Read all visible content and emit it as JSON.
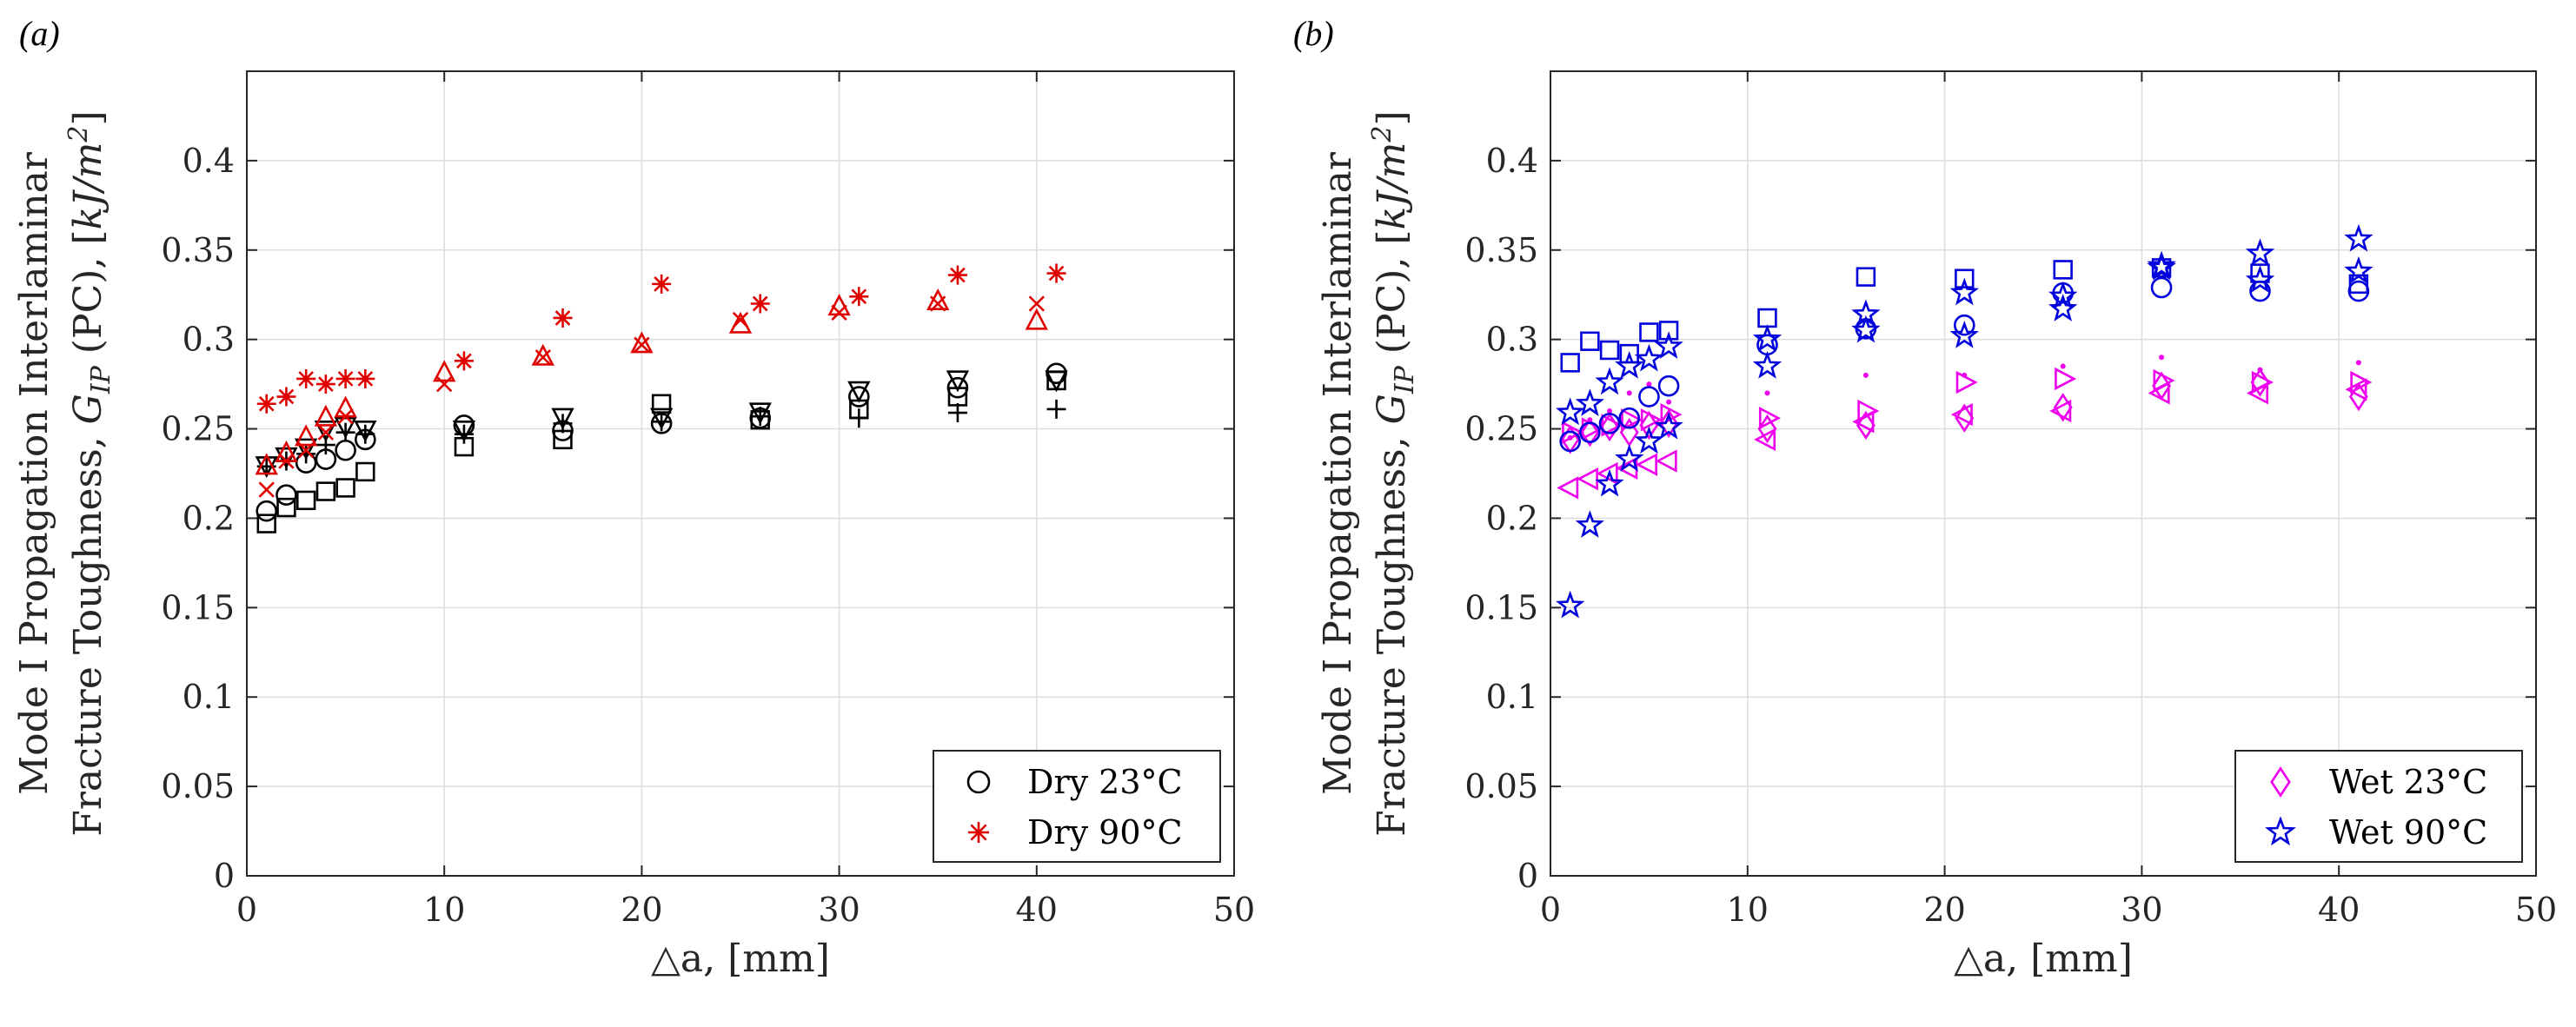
{
  "chart_data": [
    {
      "panel_label": "(a)",
      "type": "scatter",
      "xlabel": "△a, [mm]",
      "ylabel_line1": "Mode I Propagation Interlaminar",
      "ylabel_line2_prefix": "Fracture Toughness, ",
      "ylabel_line2_symbol": "G",
      "ylabel_line2_subscript": "IP",
      "ylabel_line2_suffix": " (PC), [",
      "ylabel_line2_unit": "kJ/m",
      "ylabel_line2_unit_sup": "2",
      "ylabel_line2_end": "]",
      "xlim": [
        0,
        50
      ],
      "ylim": [
        0,
        0.45
      ],
      "xticks": [
        "0",
        "10",
        "20",
        "30",
        "40",
        "50"
      ],
      "yticks": [
        "0",
        "0.05",
        "0.1",
        "0.15",
        "0.2",
        "0.25",
        "0.3",
        "0.35",
        "0.4"
      ],
      "grid": true,
      "legend_position": "bottom-right",
      "legend": [
        {
          "label": "Dry 23°C",
          "marker": "circle",
          "color": "#000000"
        },
        {
          "label": "Dry 90°C",
          "marker": "asterisk",
          "color": "#e00000"
        }
      ],
      "series": [
        {
          "group": "Dry 23°C",
          "marker": "circle",
          "color": "#000000",
          "points": [
            [
              1,
              0.204
            ],
            [
              2,
              0.213
            ],
            [
              3,
              0.231
            ],
            [
              4,
              0.233
            ],
            [
              5,
              0.238
            ],
            [
              6,
              0.244
            ],
            [
              11,
              0.252
            ],
            [
              16,
              0.249
            ],
            [
              21,
              0.253
            ],
            [
              26,
              0.256
            ],
            [
              31,
              0.268
            ],
            [
              36,
              0.273
            ],
            [
              41,
              0.281
            ]
          ]
        },
        {
          "group": "Dry 23°C",
          "marker": "square",
          "color": "#000000",
          "points": [
            [
              1,
              0.197
            ],
            [
              2,
              0.206
            ],
            [
              3,
              0.21
            ],
            [
              4,
              0.215
            ],
            [
              5,
              0.217
            ],
            [
              6,
              0.226
            ],
            [
              11,
              0.24
            ],
            [
              16,
              0.244
            ],
            [
              21,
              0.264
            ],
            [
              26,
              0.255
            ],
            [
              31,
              0.261
            ],
            [
              36,
              0.268
            ],
            [
              41,
              0.277
            ]
          ]
        },
        {
          "group": "Dry 23°C",
          "marker": "triangle-down",
          "color": "#000000",
          "points": [
            [
              1,
              0.23
            ],
            [
              2,
              0.235
            ],
            [
              3,
              0.24
            ],
            [
              4,
              0.25
            ],
            [
              5,
              0.252
            ],
            [
              6,
              0.25
            ],
            [
              11,
              0.25
            ],
            [
              16,
              0.257
            ],
            [
              21,
              0.257
            ],
            [
              26,
              0.26
            ],
            [
              31,
              0.272
            ],
            [
              36,
              0.278
            ],
            [
              41,
              0.278
            ]
          ]
        },
        {
          "group": "Dry 23°C",
          "marker": "plus",
          "color": "#000000",
          "points": [
            [
              1,
              0.229
            ],
            [
              2,
              0.232
            ],
            [
              3,
              0.236
            ],
            [
              4,
              0.241
            ],
            [
              5,
              0.248
            ],
            [
              6,
              0.247
            ],
            [
              11,
              0.247
            ],
            [
              16,
              0.253
            ],
            [
              21,
              0.254
            ],
            [
              26,
              0.257
            ],
            [
              31,
              0.256
            ],
            [
              36,
              0.259
            ],
            [
              41,
              0.261
            ]
          ]
        },
        {
          "group": "Dry 90°C",
          "marker": "asterisk",
          "color": "#e00000",
          "points": [
            [
              1,
              0.264
            ],
            [
              2,
              0.268
            ],
            [
              3,
              0.278
            ],
            [
              4,
              0.275
            ],
            [
              5,
              0.278
            ],
            [
              6,
              0.278
            ],
            [
              11,
              0.288
            ],
            [
              16,
              0.312
            ],
            [
              21,
              0.331
            ],
            [
              26,
              0.32
            ],
            [
              31,
              0.324
            ],
            [
              36,
              0.336
            ],
            [
              41,
              0.337
            ]
          ]
        },
        {
          "group": "Dry 90°C",
          "marker": "triangle-up",
          "color": "#e00000",
          "points": [
            [
              1,
              0.229
            ],
            [
              2,
              0.236
            ],
            [
              3,
              0.245
            ],
            [
              4,
              0.256
            ],
            [
              5,
              0.261
            ],
            [
              10,
              0.281
            ],
            [
              15,
              0.29
            ],
            [
              20,
              0.297
            ],
            [
              25,
              0.308
            ],
            [
              30,
              0.318
            ],
            [
              35,
              0.321
            ],
            [
              40,
              0.31
            ]
          ]
        },
        {
          "group": "Dry 90°C",
          "marker": "cross",
          "color": "#e00000",
          "points": [
            [
              1,
              0.216
            ],
            [
              2,
              0.232
            ],
            [
              3,
              0.238
            ],
            [
              4,
              0.248
            ],
            [
              5,
              0.257
            ],
            [
              10,
              0.275
            ],
            [
              15,
              0.29
            ],
            [
              20,
              0.297
            ],
            [
              25,
              0.311
            ],
            [
              30,
              0.315
            ],
            [
              35,
              0.32
            ],
            [
              40,
              0.32
            ]
          ]
        }
      ]
    },
    {
      "panel_label": "(b)",
      "type": "scatter",
      "xlabel": "△a, [mm]",
      "ylabel_line1": "Mode I Propagation Interlaminar",
      "ylabel_line2_prefix": "Fracture Toughness, ",
      "ylabel_line2_symbol": "G",
      "ylabel_line2_subscript": "IP",
      "ylabel_line2_suffix": " (PC), [",
      "ylabel_line2_unit": "kJ/m",
      "ylabel_line2_unit_sup": "2",
      "ylabel_line2_end": "]",
      "xlim": [
        0,
        50
      ],
      "ylim": [
        0,
        0.45
      ],
      "xticks": [
        "0",
        "10",
        "20",
        "30",
        "40",
        "50"
      ],
      "yticks": [
        "0",
        "0.05",
        "0.1",
        "0.15",
        "0.2",
        "0.25",
        "0.3",
        "0.35",
        "0.4"
      ],
      "grid": true,
      "legend_position": "bottom-right",
      "legend": [
        {
          "label": "Wet 23°C",
          "marker": "diamond",
          "color": "#ee00ee"
        },
        {
          "label": "Wet 90°C",
          "marker": "star",
          "color": "#0000dd"
        }
      ],
      "series": [
        {
          "group": "Wet 23°C",
          "marker": "diamond",
          "color": "#ee00ee",
          "points": [
            [
              1,
              0.244
            ],
            [
              2,
              0.248
            ],
            [
              3,
              0.251
            ],
            [
              4,
              0.248
            ],
            [
              5,
              0.252
            ],
            [
              6,
              0.253
            ],
            [
              11,
              0.25
            ],
            [
              16,
              0.252
            ],
            [
              21,
              0.256
            ],
            [
              26,
              0.262
            ],
            [
              31,
              0.274
            ],
            [
              36,
              0.276
            ],
            [
              41,
              0.268
            ]
          ]
        },
        {
          "group": "Wet 23°C",
          "marker": "triangle-left",
          "color": "#ee00ee",
          "points": [
            [
              1,
              0.217
            ],
            [
              2,
              0.222
            ],
            [
              3,
              0.225
            ],
            [
              4,
              0.228
            ],
            [
              5,
              0.23
            ],
            [
              6,
              0.232
            ],
            [
              11,
              0.244
            ],
            [
              16,
              0.254
            ],
            [
              21,
              0.258
            ],
            [
              26,
              0.26
            ],
            [
              31,
              0.27
            ],
            [
              36,
              0.27
            ],
            [
              41,
              0.272
            ]
          ]
        },
        {
          "group": "Wet 23°C",
          "marker": "triangle-right",
          "color": "#ee00ee",
          "points": [
            [
              1,
              0.248
            ],
            [
              2,
              0.25
            ],
            [
              3,
              0.252
            ],
            [
              4,
              0.255
            ],
            [
              5,
              0.255
            ],
            [
              6,
              0.258
            ],
            [
              11,
              0.256
            ],
            [
              16,
              0.26
            ],
            [
              21,
              0.276
            ],
            [
              26,
              0.278
            ],
            [
              31,
              0.277
            ],
            [
              36,
              0.276
            ],
            [
              41,
              0.276
            ]
          ]
        },
        {
          "group": "Wet 23°C",
          "marker": "point",
          "color": "#ee00ee",
          "points": [
            [
              1,
              0.245
            ],
            [
              2,
              0.255
            ],
            [
              3,
              0.26
            ],
            [
              4,
              0.27
            ],
            [
              5,
              0.275
            ],
            [
              6,
              0.265
            ],
            [
              11,
              0.27
            ],
            [
              16,
              0.28
            ],
            [
              21,
              0.28
            ],
            [
              26,
              0.285
            ],
            [
              31,
              0.29
            ],
            [
              36,
              0.283
            ],
            [
              41,
              0.287
            ]
          ]
        },
        {
          "group": "Wet 90°C",
          "marker": "star",
          "color": "#0000dd",
          "points": [
            [
              1,
              0.151
            ],
            [
              2,
              0.196
            ],
            [
              3,
              0.219
            ],
            [
              4,
              0.233
            ],
            [
              5,
              0.243
            ],
            [
              6,
              0.251
            ],
            [
              11,
              0.285
            ],
            [
              16,
              0.305
            ],
            [
              21,
              0.302
            ],
            [
              26,
              0.317
            ],
            [
              31,
              0.34
            ],
            [
              36,
              0.348
            ],
            [
              41,
              0.356
            ]
          ]
        },
        {
          "group": "Wet 90°C",
          "marker": "star",
          "color": "#0000dd",
          "points": [
            [
              1,
              0.259
            ],
            [
              2,
              0.264
            ],
            [
              3,
              0.276
            ],
            [
              4,
              0.285
            ],
            [
              5,
              0.289
            ],
            [
              6,
              0.296
            ],
            [
              11,
              0.3
            ],
            [
              16,
              0.314
            ],
            [
              21,
              0.326
            ],
            [
              26,
              0.324
            ],
            [
              31,
              0.341
            ],
            [
              36,
              0.333
            ],
            [
              41,
              0.338
            ]
          ]
        },
        {
          "group": "Wet 90°C",
          "marker": "square",
          "color": "#0000dd",
          "points": [
            [
              1,
              0.287
            ],
            [
              2,
              0.299
            ],
            [
              3,
              0.294
            ],
            [
              4,
              0.292
            ],
            [
              5,
              0.304
            ],
            [
              6,
              0.305
            ],
            [
              11,
              0.312
            ],
            [
              16,
              0.335
            ],
            [
              21,
              0.334
            ],
            [
              26,
              0.339
            ],
            [
              31,
              0.34
            ],
            [
              36,
              0.337
            ],
            [
              41,
              0.331
            ]
          ]
        },
        {
          "group": "Wet 90°C",
          "marker": "circle",
          "color": "#0000dd",
          "points": [
            [
              1,
              0.243
            ],
            [
              2,
              0.248
            ],
            [
              3,
              0.253
            ],
            [
              4,
              0.256
            ],
            [
              5,
              0.268
            ],
            [
              6,
              0.274
            ],
            [
              11,
              0.297
            ],
            [
              16,
              0.306
            ],
            [
              21,
              0.308
            ],
            [
              26,
              0.326
            ],
            [
              31,
              0.329
            ],
            [
              36,
              0.327
            ],
            [
              41,
              0.327
            ]
          ]
        }
      ]
    }
  ]
}
